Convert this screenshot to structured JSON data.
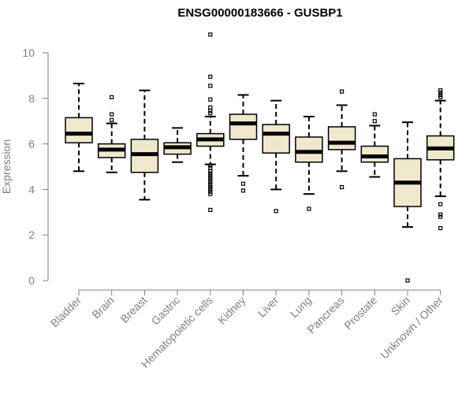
{
  "chart_data": {
    "type": "box",
    "title": "ENSG00000183666 - GUSBP1",
    "ylabel": "Expression",
    "xlabel": "",
    "ylim": [
      0,
      10
    ],
    "yticks": [
      0,
      2,
      4,
      6,
      8,
      10
    ],
    "grid": false,
    "box_color": "#efe8cd",
    "categories": [
      "Bladder",
      "Brain",
      "Breast",
      "Gastric",
      "Hematopoietic cells",
      "Kidney",
      "Liver",
      "Lung",
      "Pancreas",
      "Prostate",
      "Skin",
      "Unknown / Other"
    ],
    "boxes": [
      {
        "category": "Bladder",
        "min": 4.8,
        "q1": 6.05,
        "median": 6.45,
        "q3": 7.15,
        "max": 8.65,
        "outliers": []
      },
      {
        "category": "Brain",
        "min": 4.75,
        "q1": 5.4,
        "median": 5.75,
        "q3": 6.0,
        "max": 6.9,
        "outliers": [
          7.05,
          7.3,
          8.05
        ]
      },
      {
        "category": "Breast",
        "min": 3.55,
        "q1": 4.75,
        "median": 5.55,
        "q3": 6.2,
        "max": 8.35,
        "outliers": []
      },
      {
        "category": "Gastric",
        "min": 5.2,
        "q1": 5.55,
        "median": 5.85,
        "q3": 6.05,
        "max": 6.7,
        "outliers": []
      },
      {
        "category": "Hematopoietic cells",
        "min": 5.1,
        "q1": 5.9,
        "median": 6.2,
        "q3": 6.45,
        "max": 7.2,
        "outliers": [
          10.8,
          8.95,
          8.55,
          7.95,
          7.6,
          7.45,
          7.35,
          5.05,
          4.95,
          4.8,
          4.7,
          4.6,
          4.5,
          4.4,
          4.3,
          4.2,
          4.1,
          4.0,
          3.9,
          3.8,
          3.1
        ]
      },
      {
        "category": "Kidney",
        "min": 4.6,
        "q1": 6.2,
        "median": 6.9,
        "q3": 7.3,
        "max": 8.15,
        "outliers": [
          4.25,
          3.95
        ]
      },
      {
        "category": "Liver",
        "min": 4.0,
        "q1": 5.6,
        "median": 6.45,
        "q3": 6.85,
        "max": 7.9,
        "outliers": [
          3.05
        ]
      },
      {
        "category": "Lung",
        "min": 3.8,
        "q1": 5.2,
        "median": 5.65,
        "q3": 6.3,
        "max": 7.2,
        "outliers": [
          3.15
        ]
      },
      {
        "category": "Pancreas",
        "min": 4.8,
        "q1": 5.75,
        "median": 6.05,
        "q3": 6.75,
        "max": 7.7,
        "outliers": [
          8.3,
          4.1
        ]
      },
      {
        "category": "Prostate",
        "min": 4.55,
        "q1": 5.2,
        "median": 5.45,
        "q3": 5.9,
        "max": 6.8,
        "outliers": [
          7.3,
          7.0
        ]
      },
      {
        "category": "Skin",
        "min": 2.35,
        "q1": 3.25,
        "median": 4.3,
        "q3": 5.35,
        "max": 6.95,
        "outliers": [
          0.0
        ]
      },
      {
        "category": "Unknown / Other",
        "min": 3.7,
        "q1": 5.3,
        "median": 5.8,
        "q3": 6.35,
        "max": 7.9,
        "outliers": [
          8.35,
          8.25,
          8.15,
          8.05,
          3.35,
          2.9,
          2.8,
          2.3
        ]
      }
    ]
  }
}
